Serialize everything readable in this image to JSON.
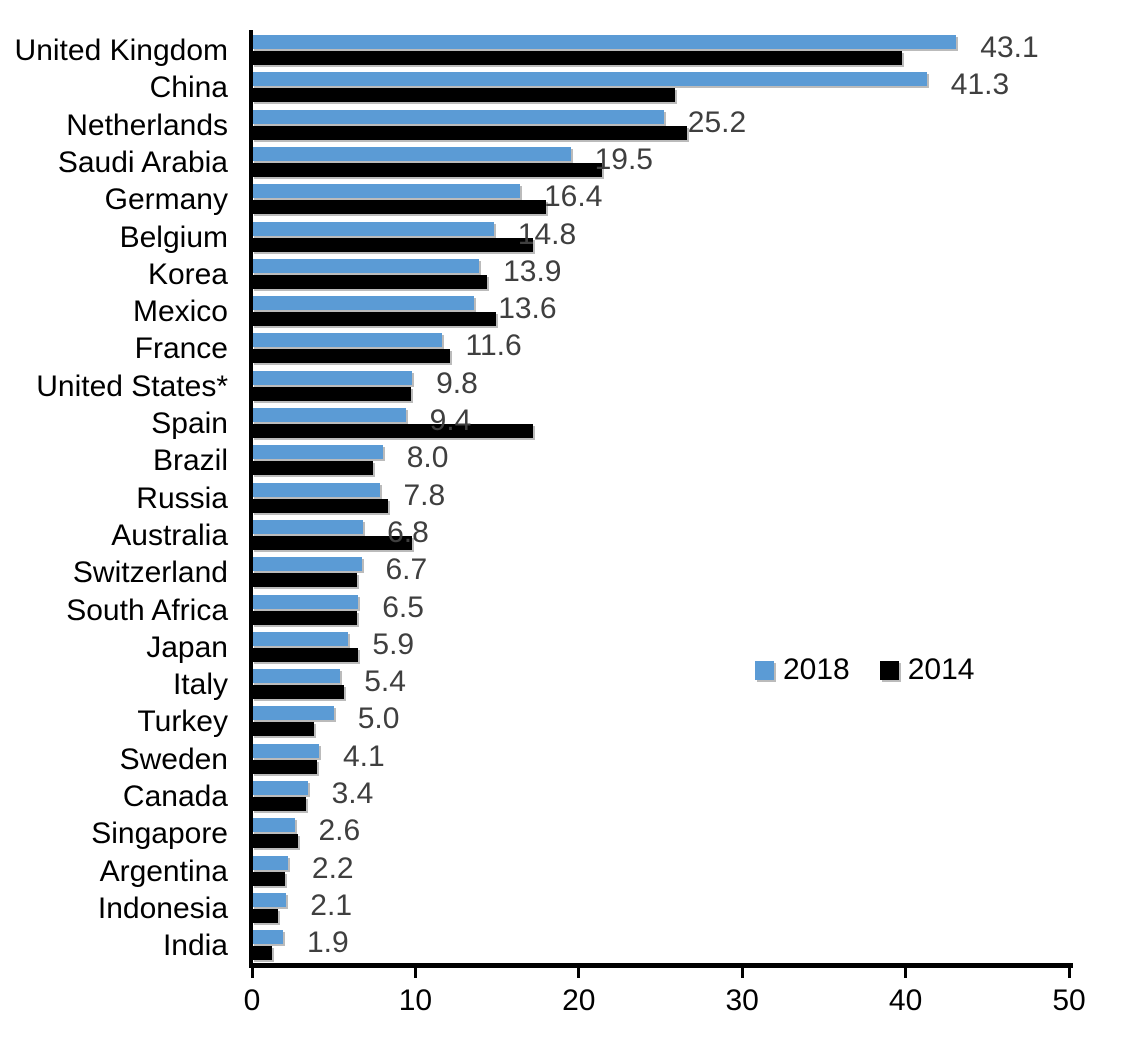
{
  "chart_data": {
    "type": "bar",
    "orientation": "horizontal",
    "title": "",
    "xlabel": "",
    "ylabel": "",
    "xlim": [
      0,
      50
    ],
    "x_ticks": [
      0,
      10,
      20,
      30,
      40,
      50
    ],
    "grid": false,
    "legend_position": "center-right",
    "categories": [
      "United Kingdom",
      "China",
      "Netherlands",
      "Saudi Arabia",
      "Germany",
      "Belgium",
      "Korea",
      "Mexico",
      "France",
      "United States*",
      "Spain",
      "Brazil",
      "Russia",
      "Australia",
      "Switzerland",
      "South Africa",
      "Japan",
      "Italy",
      "Turkey",
      "Sweden",
      "Canada",
      "Singapore",
      "Argentina",
      "Indonesia",
      "India"
    ],
    "series": [
      {
        "name": "2018",
        "color": "#5B9BD5",
        "data_labels_shown": true,
        "values": [
          43.1,
          41.3,
          25.2,
          19.5,
          16.4,
          14.8,
          13.9,
          13.6,
          11.6,
          9.8,
          9.4,
          8.0,
          7.8,
          6.8,
          6.7,
          6.5,
          5.9,
          5.4,
          5.0,
          4.1,
          3.4,
          2.6,
          2.2,
          2.1,
          1.9
        ]
      },
      {
        "name": "2014",
        "color": "#000000",
        "data_labels_shown": false,
        "values": [
          39.8,
          25.9,
          26.6,
          21.4,
          18.0,
          17.2,
          14.4,
          14.9,
          12.1,
          9.7,
          17.2,
          7.4,
          8.3,
          9.8,
          6.4,
          6.4,
          6.5,
          5.6,
          3.8,
          4.0,
          3.3,
          2.8,
          2.0,
          1.6,
          1.2
        ]
      }
    ]
  },
  "colors": {
    "bar_2018": "#5B9BD5",
    "bar_2014": "#000000",
    "value_label": "#3F3F3F",
    "axis": "#000000",
    "background": "#FFFFFF"
  }
}
